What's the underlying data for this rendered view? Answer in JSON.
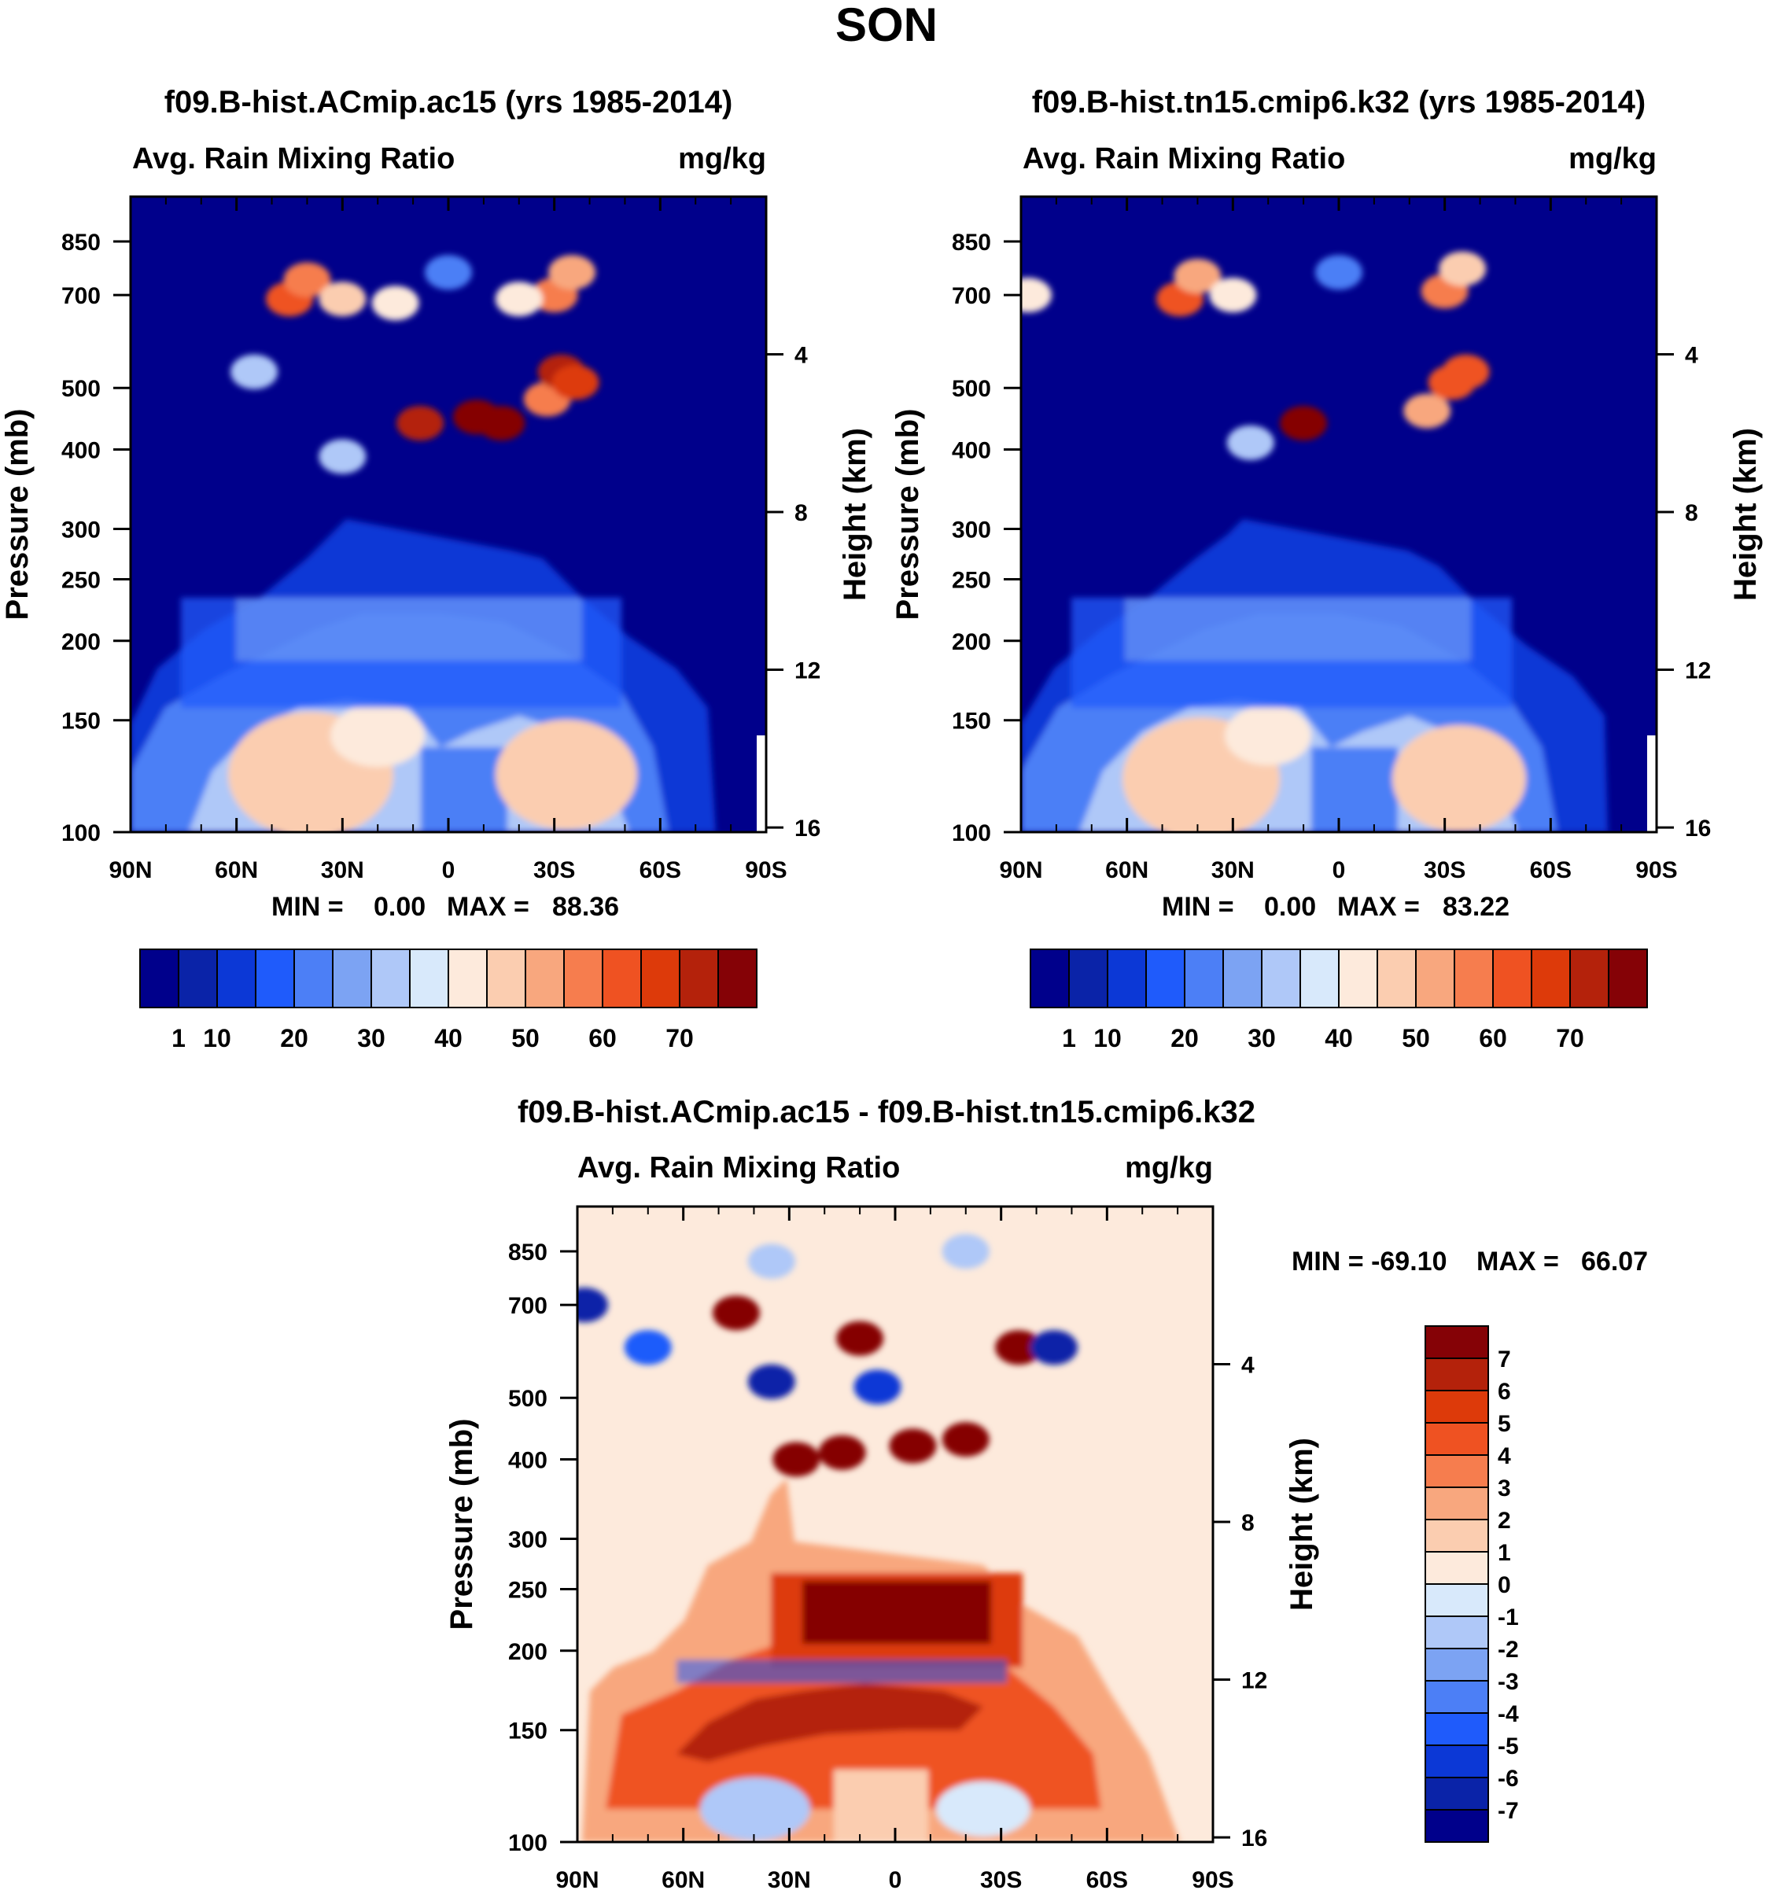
{
  "figure": {
    "title": "SON",
    "colors": {
      "abs_palette": [
        "#00008b",
        "#0a23a8",
        "#0c38d6",
        "#1f5bfb",
        "#4c7ff6",
        "#7ca3f3",
        "#afc8f8",
        "#d8e9fb",
        "#fdeadc",
        "#fbcdb0",
        "#f8a77e",
        "#f67d4e",
        "#ef5222",
        "#dd3a0a",
        "#b4220b",
        "#850206"
      ],
      "diff_palette": [
        "#00008b",
        "#0a23a8",
        "#0c38d6",
        "#1f5bfb",
        "#4c7ff6",
        "#7ca3f3",
        "#afc8f8",
        "#d8e9fb",
        "#fdeadc",
        "#fbcdb0",
        "#f8a77e",
        "#f67d4e",
        "#ef5222",
        "#dd3a0a",
        "#b4220b",
        "#850206"
      ]
    }
  },
  "chart_data": [
    {
      "type": "heatmap",
      "id": "panel-a",
      "title": "f09.B-hist.ACmip.ac15 (yrs 1985-2014)",
      "left_string": "Avg. Rain Mixing Ratio",
      "right_string": "mg/kg",
      "ylabel": "Pressure (mb)",
      "ylabel_right": "Height (km)",
      "x_ticks": [
        "90N",
        "60N",
        "30N",
        "0",
        "30S",
        "60S",
        "90S"
      ],
      "y_ticks": [
        "100",
        "150",
        "200",
        "250",
        "300",
        "400",
        "500",
        "700",
        "850"
      ],
      "y_ticks_right": [
        "16",
        "12",
        "8",
        "4"
      ],
      "xlim": [
        90,
        -90
      ],
      "ylim": [
        1000,
        100
      ],
      "min_label": "MIN =",
      "min_value": "0.00",
      "max_label": "MAX =",
      "max_value": "88.36",
      "colorbar_labels": [
        "1",
        "10",
        "20",
        "30",
        "40",
        "50",
        "60",
        "70"
      ],
      "cells": [
        {
          "lat": 45,
          "p": 690,
          "value": 62
        },
        {
          "lat": 40,
          "p": 740,
          "value": 55
        },
        {
          "lat": 30,
          "p": 690,
          "value": 45
        },
        {
          "lat": 15,
          "p": 680,
          "value": 40
        },
        {
          "lat": -30,
          "p": 700,
          "value": 58
        },
        {
          "lat": -35,
          "p": 760,
          "value": 52
        },
        {
          "lat": -20,
          "p": 690,
          "value": 42
        },
        {
          "lat": 0,
          "p": 760,
          "value": 22
        },
        {
          "lat": -15,
          "p": 440,
          "value": 78
        },
        {
          "lat": -8,
          "p": 450,
          "value": 80
        },
        {
          "lat": 8,
          "p": 440,
          "value": 72
        },
        {
          "lat": -28,
          "p": 480,
          "value": 55
        },
        {
          "lat": -32,
          "p": 530,
          "value": 70
        },
        {
          "lat": -36,
          "p": 510,
          "value": 65
        },
        {
          "lat": 30,
          "p": 390,
          "value": 32
        },
        {
          "lat": 55,
          "p": 530,
          "value": 30
        }
      ]
    },
    {
      "type": "heatmap",
      "id": "panel-b",
      "title": "f09.B-hist.tn15.cmip6.k32 (yrs 1985-2014)",
      "left_string": "Avg. Rain Mixing Ratio",
      "right_string": "mg/kg",
      "ylabel": "Pressure (mb)",
      "ylabel_right": "Height (km)",
      "x_ticks": [
        "90N",
        "60N",
        "30N",
        "0",
        "30S",
        "60S",
        "90S"
      ],
      "y_ticks": [
        "100",
        "150",
        "200",
        "250",
        "300",
        "400",
        "500",
        "700",
        "850"
      ],
      "y_ticks_right": [
        "16",
        "12",
        "8",
        "4"
      ],
      "xlim": [
        90,
        -90
      ],
      "ylim": [
        1000,
        100
      ],
      "min_label": "MIN =",
      "min_value": "0.00",
      "max_label": "MAX =",
      "max_value": "83.22",
      "colorbar_labels": [
        "1",
        "10",
        "20",
        "30",
        "40",
        "50",
        "60",
        "70"
      ],
      "cells": [
        {
          "lat": 45,
          "p": 690,
          "value": 60
        },
        {
          "lat": 40,
          "p": 750,
          "value": 52
        },
        {
          "lat": 30,
          "p": 700,
          "value": 42
        },
        {
          "lat": -30,
          "p": 710,
          "value": 55
        },
        {
          "lat": -35,
          "p": 770,
          "value": 48
        },
        {
          "lat": 10,
          "p": 440,
          "value": 76
        },
        {
          "lat": -25,
          "p": 460,
          "value": 50
        },
        {
          "lat": -32,
          "p": 510,
          "value": 62
        },
        {
          "lat": -36,
          "p": 530,
          "value": 60
        },
        {
          "lat": 0,
          "p": 760,
          "value": 22
        },
        {
          "lat": 88,
          "p": 700,
          "value": 42
        },
        {
          "lat": 25,
          "p": 410,
          "value": 30
        }
      ]
    },
    {
      "type": "heatmap",
      "id": "panel-diff",
      "title": "f09.B-hist.ACmip.ac15 - f09.B-hist.tn15.cmip6.k32",
      "left_string": "Avg. Rain Mixing Ratio",
      "right_string": "mg/kg",
      "ylabel": "Pressure (mb)",
      "ylabel_right": "Height (km)",
      "x_ticks": [
        "90N",
        "60N",
        "30N",
        "0",
        "30S",
        "60S",
        "90S"
      ],
      "y_ticks": [
        "100",
        "150",
        "200",
        "250",
        "300",
        "400",
        "500",
        "700",
        "850"
      ],
      "y_ticks_right": [
        "16",
        "12",
        "8",
        "4"
      ],
      "xlim": [
        90,
        -90
      ],
      "ylim": [
        1000,
        100
      ],
      "min_label": "MIN = -69.10",
      "max_label": "MAX =",
      "max_value": "66.07",
      "colorbar_labels": [
        "7",
        "6",
        "5",
        "4",
        "3",
        "2",
        "1",
        "0",
        "-1",
        "-2",
        "-3",
        "-4",
        "-5",
        "-6",
        "-7"
      ],
      "cells": [
        {
          "lat": 28,
          "p": 400,
          "value": 9
        },
        {
          "lat": 15,
          "p": 410,
          "value": 8
        },
        {
          "lat": -5,
          "p": 420,
          "value": 9
        },
        {
          "lat": -20,
          "p": 430,
          "value": 8
        },
        {
          "lat": 10,
          "p": 620,
          "value": 8
        },
        {
          "lat": 45,
          "p": 680,
          "value": 7
        },
        {
          "lat": -35,
          "p": 600,
          "value": 7
        },
        {
          "lat": 35,
          "p": 530,
          "value": -7
        },
        {
          "lat": 5,
          "p": 520,
          "value": -6
        },
        {
          "lat": -45,
          "p": 600,
          "value": -7
        },
        {
          "lat": 88,
          "p": 700,
          "value": -7
        },
        {
          "lat": 70,
          "p": 600,
          "value": -5
        },
        {
          "lat": 35,
          "p": 820,
          "value": -2
        },
        {
          "lat": -20,
          "p": 850,
          "value": -2
        }
      ]
    }
  ]
}
